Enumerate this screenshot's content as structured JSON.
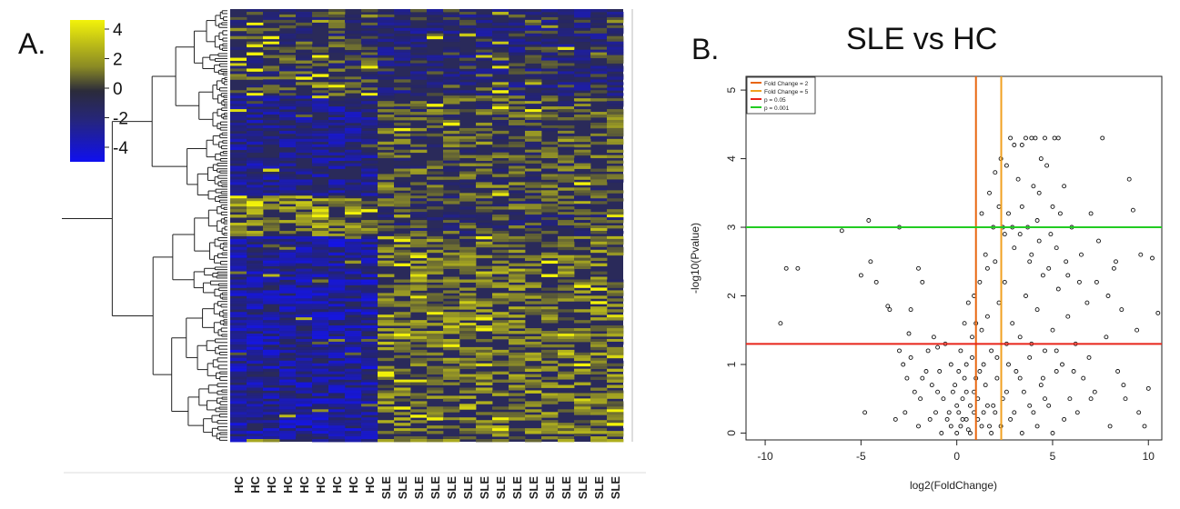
{
  "panel_a": {
    "label": "A.",
    "colorbar": {
      "ticks": [
        "4",
        "2",
        "0",
        "-2",
        "-4"
      ],
      "colors": {
        "high": "#f2f20a",
        "mid": "#2b2b3a",
        "low": "#1010f0"
      }
    },
    "heatmap": {
      "columns": [
        "HC",
        "HC",
        "HC",
        "HC",
        "HC",
        "HC",
        "HC",
        "HC",
        "HC",
        "SLE",
        "SLE",
        "SLE",
        "SLE",
        "SLE",
        "SLE",
        "SLE",
        "SLE",
        "SLE",
        "SLE",
        "SLE",
        "SLE",
        "SLE",
        "SLE",
        "SLE"
      ],
      "background_color": "#2a2a5a"
    }
  },
  "panel_b": {
    "label": "B.",
    "chart_data": {
      "type": "scatter",
      "title": "SLE vs HC",
      "xlabel": "log2(FoldChange)",
      "ylabel": "-log10(Pvalue)",
      "xlim": [
        -11,
        10.7
      ],
      "ylim": [
        -0.1,
        5.2
      ],
      "xticks": [
        "-10",
        "-5",
        "0",
        "5",
        "10"
      ],
      "yticks": [
        "0",
        "1",
        "2",
        "3",
        "4",
        "5"
      ],
      "xtick_values": [
        -10,
        -5,
        0,
        5,
        10
      ],
      "ytick_values": [
        0,
        1,
        2,
        3,
        4,
        5
      ],
      "legend": {
        "placement": "top-left",
        "entries": [
          {
            "label": "Fold Change = 2",
            "color": "#e8660f"
          },
          {
            "label": "Fold Change = 5",
            "color": "#f0a020"
          },
          {
            "label": "p = 0.05",
            "color": "#e8251a"
          },
          {
            "label": "p = 0.001",
            "color": "#22cc22"
          }
        ]
      },
      "reference_lines": [
        {
          "orientation": "vertical",
          "value": 1.0,
          "color": "#e8660f"
        },
        {
          "orientation": "vertical",
          "value": 2.32,
          "color": "#f0a020"
        },
        {
          "orientation": "horizontal",
          "value": 1.3,
          "color": "#e8251a"
        },
        {
          "orientation": "horizontal",
          "value": 3.0,
          "color": "#22cc22"
        }
      ],
      "points": [
        [
          -9.2,
          1.6
        ],
        [
          -8.9,
          2.4
        ],
        [
          -8.3,
          2.4
        ],
        [
          -6.0,
          2.95
        ],
        [
          -4.6,
          3.1
        ],
        [
          -3.0,
          3.0
        ],
        [
          -4.5,
          2.5
        ],
        [
          -4.2,
          2.2
        ],
        [
          -5.0,
          2.3
        ],
        [
          -4.8,
          0.3
        ],
        [
          -3.5,
          1.8
        ],
        [
          -3.6,
          1.85
        ],
        [
          -2.4,
          1.8
        ],
        [
          -1.8,
          2.2
        ],
        [
          -2.0,
          2.4
        ],
        [
          -2.5,
          1.45
        ],
        [
          -1.5,
          1.2
        ],
        [
          -1.2,
          1.4
        ],
        [
          -1.0,
          1.25
        ],
        [
          -3.0,
          1.2
        ],
        [
          -2.8,
          1.0
        ],
        [
          -2.6,
          0.8
        ],
        [
          -2.2,
          0.6
        ],
        [
          -1.9,
          0.5
        ],
        [
          -1.6,
          0.9
        ],
        [
          -1.3,
          0.7
        ],
        [
          -1.1,
          0.3
        ],
        [
          -0.9,
          0.9
        ],
        [
          -0.7,
          0.5
        ],
        [
          -0.5,
          0.2
        ],
        [
          -0.3,
          0.1
        ],
        [
          -0.2,
          0.6
        ],
        [
          0.0,
          0.0
        ],
        [
          0.1,
          0.3
        ],
        [
          0.2,
          0.1
        ],
        [
          0.3,
          0.5
        ],
        [
          0.4,
          0.8
        ],
        [
          0.5,
          0.2
        ],
        [
          0.6,
          0.05
        ],
        [
          0.7,
          0.4
        ],
        [
          0.8,
          1.1
        ],
        [
          0.9,
          0.6
        ],
        [
          1.1,
          0.2
        ],
        [
          1.2,
          0.9
        ],
        [
          1.3,
          1.5
        ],
        [
          1.4,
          0.3
        ],
        [
          1.5,
          0.7
        ],
        [
          1.6,
          1.7
        ],
        [
          1.7,
          0.1
        ],
        [
          1.8,
          1.2
        ],
        [
          1.9,
          0.4
        ],
        [
          2.0,
          2.5
        ],
        [
          2.1,
          0.8
        ],
        [
          2.2,
          1.9
        ],
        [
          2.4,
          0.5
        ],
        [
          2.5,
          2.2
        ],
        [
          2.6,
          1.3
        ],
        [
          2.7,
          3.2
        ],
        [
          2.8,
          0.2
        ],
        [
          2.9,
          1.6
        ],
        [
          3.0,
          2.7
        ],
        [
          3.1,
          0.9
        ],
        [
          3.2,
          3.7
        ],
        [
          3.3,
          1.4
        ],
        [
          3.4,
          4.2
        ],
        [
          3.5,
          0.6
        ],
        [
          3.6,
          2.0
        ],
        [
          3.7,
          3.0
        ],
        [
          3.8,
          1.1
        ],
        [
          3.9,
          2.6
        ],
        [
          4.0,
          0.3
        ],
        [
          4.1,
          4.3
        ],
        [
          4.2,
          1.8
        ],
        [
          4.3,
          3.5
        ],
        [
          4.4,
          0.7
        ],
        [
          4.5,
          2.3
        ],
        [
          4.6,
          1.2
        ],
        [
          4.7,
          3.9
        ],
        [
          4.8,
          0.4
        ],
        [
          4.9,
          2.9
        ],
        [
          5.0,
          1.5
        ],
        [
          5.1,
          4.3
        ],
        [
          5.2,
          0.9
        ],
        [
          5.3,
          2.1
        ],
        [
          5.4,
          3.2
        ],
        [
          5.5,
          1.0
        ],
        [
          5.6,
          0.2
        ],
        [
          5.7,
          2.5
        ],
        [
          5.8,
          1.7
        ],
        [
          5.9,
          0.5
        ],
        [
          6.0,
          3.0
        ],
        [
          6.2,
          1.3
        ],
        [
          6.4,
          2.2
        ],
        [
          6.6,
          0.8
        ],
        [
          6.8,
          1.9
        ],
        [
          7.0,
          3.2
        ],
        [
          7.2,
          0.6
        ],
        [
          7.4,
          2.8
        ],
        [
          7.6,
          4.3
        ],
        [
          7.8,
          1.4
        ],
        [
          8.0,
          0.1
        ],
        [
          8.2,
          2.4
        ],
        [
          8.4,
          0.9
        ],
        [
          8.6,
          1.8
        ],
        [
          8.8,
          0.5
        ],
        [
          9.0,
          3.7
        ],
        [
          9.2,
          3.25
        ],
        [
          9.4,
          1.5
        ],
        [
          9.6,
          2.6
        ],
        [
          9.8,
          0.1
        ],
        [
          10.0,
          0.65
        ],
        [
          10.2,
          2.55
        ],
        [
          10.5,
          1.75
        ],
        [
          9.5,
          0.3
        ],
        [
          8.7,
          0.7
        ],
        [
          7.9,
          2.0
        ],
        [
          6.9,
          1.1
        ],
        [
          6.3,
          0.3
        ],
        [
          5.6,
          3.6
        ],
        [
          4.4,
          4.0
        ],
        [
          3.6,
          4.3
        ],
        [
          3.0,
          4.2
        ],
        [
          2.6,
          3.9
        ],
        [
          2.3,
          4.0
        ],
        [
          2.8,
          4.3
        ],
        [
          3.9,
          4.3
        ],
        [
          4.0,
          3.6
        ],
        [
          4.6,
          4.3
        ],
        [
          5.3,
          4.3
        ],
        [
          2.4,
          3.0
        ],
        [
          2.9,
          3.0
        ],
        [
          3.3,
          2.9
        ],
        [
          3.8,
          2.5
        ],
        [
          4.3,
          2.8
        ],
        [
          4.8,
          2.4
        ],
        [
          5.2,
          2.7
        ],
        [
          5.8,
          2.3
        ],
        [
          6.5,
          2.6
        ],
        [
          7.3,
          2.2
        ],
        [
          8.3,
          2.5
        ],
        [
          1.0,
          1.6
        ],
        [
          1.2,
          2.2
        ],
        [
          1.5,
          2.6
        ],
        [
          1.9,
          3.0
        ],
        [
          2.2,
          3.3
        ],
        [
          1.3,
          3.2
        ],
        [
          1.7,
          3.5
        ],
        [
          2.0,
          3.8
        ],
        [
          0.6,
          1.9
        ],
        [
          0.8,
          1.4
        ],
        [
          0.2,
          1.2
        ],
        [
          -0.3,
          1.0
        ],
        [
          -0.6,
          1.3
        ],
        [
          0.4,
          1.6
        ],
        [
          0.9,
          2.0
        ],
        [
          1.6,
          2.4
        ],
        [
          2.5,
          2.9
        ],
        [
          3.4,
          3.3
        ],
        [
          4.2,
          3.1
        ],
        [
          5.0,
          3.3
        ],
        [
          0.0,
          0.4
        ],
        [
          0.3,
          0.2
        ],
        [
          0.5,
          0.6
        ],
        [
          0.7,
          0.0
        ],
        [
          0.9,
          0.3
        ],
        [
          1.1,
          0.5
        ],
        [
          1.3,
          0.1
        ],
        [
          1.6,
          0.4
        ],
        [
          1.8,
          0.0
        ],
        [
          2.0,
          0.3
        ],
        [
          2.3,
          0.1
        ],
        [
          2.6,
          0.6
        ],
        [
          3.0,
          0.3
        ],
        [
          3.4,
          0.0
        ],
        [
          3.8,
          0.4
        ],
        [
          4.2,
          0.1
        ],
        [
          4.6,
          0.5
        ],
        [
          5.0,
          0.0
        ],
        [
          -0.4,
          0.3
        ],
        [
          -0.8,
          0.0
        ],
        [
          -1.4,
          0.2
        ],
        [
          -2.0,
          0.1
        ],
        [
          -2.7,
          0.3
        ],
        [
          -3.2,
          0.2
        ],
        [
          0.1,
          0.9
        ],
        [
          0.5,
          1.0
        ],
        [
          1.0,
          0.8
        ],
        [
          1.4,
          1.0
        ],
        [
          2.1,
          1.1
        ],
        [
          2.7,
          1.0
        ],
        [
          3.3,
          0.8
        ],
        [
          3.9,
          1.3
        ],
        [
          4.5,
          0.8
        ],
        [
          5.2,
          1.2
        ],
        [
          6.1,
          0.9
        ],
        [
          7.0,
          0.5
        ],
        [
          -1.0,
          0.6
        ],
        [
          -1.8,
          0.8
        ],
        [
          -2.4,
          1.1
        ],
        [
          -0.1,
          0.7
        ]
      ]
    }
  }
}
